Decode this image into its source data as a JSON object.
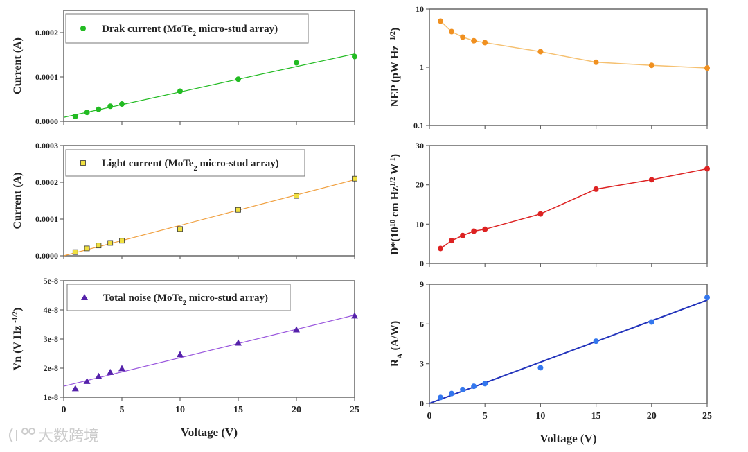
{
  "watermark": "大数跨境",
  "chart_data": [
    {
      "id": "dark",
      "type": "scatter",
      "fit": "linear",
      "x": [
        1,
        2,
        3,
        4,
        5,
        10,
        15,
        20,
        25
      ],
      "y": [
        1.1e-05,
        2e-05,
        2.7e-05,
        3.4e-05,
        3.9e-05,
        6.8e-05,
        9.5e-05,
        0.000132,
        0.000146
      ],
      "fit_line": [
        [
          0,
          9e-06
        ],
        [
          25,
          0.000152
        ]
      ],
      "ylim": [
        0,
        0.00025
      ],
      "yticks": [
        0,
        0.0001,
        0.0002
      ],
      "ytick_labels": [
        "0.0000",
        "0.0001",
        "0.0002"
      ],
      "xlim": [
        0,
        25
      ],
      "xticks": [
        0,
        5,
        10,
        15,
        20,
        25
      ],
      "xtick_labels": [],
      "ylabel": [
        {
          "t": "Current (A)"
        }
      ],
      "legend": [
        {
          "t": "Drak current (MoTe"
        },
        {
          "t": "2",
          "sub": true
        },
        {
          "t": " micro-stud array)"
        }
      ],
      "marker": "circle",
      "color": "#22bb22"
    },
    {
      "id": "light",
      "type": "scatter",
      "fit": "linear",
      "x": [
        1,
        2,
        3,
        4,
        5,
        10,
        15,
        20,
        25
      ],
      "y": [
        1e-05,
        2e-05,
        2.8e-05,
        3.5e-05,
        4.1e-05,
        7.3e-05,
        0.000125,
        0.000163,
        0.00021
      ],
      "fit_line": [
        [
          0,
          0.0
        ],
        [
          25,
          0.000207
        ]
      ],
      "ylim": [
        0,
        0.0003
      ],
      "yticks": [
        0,
        0.0001,
        0.0002,
        0.0003
      ],
      "ytick_labels": [
        "0.0000",
        "0.0001",
        "0.0002",
        "0.0003"
      ],
      "xlim": [
        0,
        25
      ],
      "xticks": [
        0,
        5,
        10,
        15,
        20,
        25
      ],
      "xtick_labels": [],
      "ylabel": [
        {
          "t": "Current (A)"
        }
      ],
      "legend": [
        {
          "t": "Light current (MoTe"
        },
        {
          "t": "2",
          "sub": true
        },
        {
          "t": " micro-stud array)"
        }
      ],
      "marker": "square",
      "color": "#f0e040",
      "line_color": "#f0a040"
    },
    {
      "id": "noise",
      "type": "scatter",
      "fit": "linear",
      "x": [
        1,
        2,
        3,
        4,
        5,
        10,
        15,
        20,
        25
      ],
      "y": [
        1.3e-08,
        1.55e-08,
        1.72e-08,
        1.86e-08,
        1.99e-08,
        2.47e-08,
        2.87e-08,
        3.32e-08,
        3.8e-08
      ],
      "fit_line": [
        [
          0,
          1.38e-08
        ],
        [
          25,
          3.82e-08
        ]
      ],
      "ylim": [
        1e-08,
        5e-08
      ],
      "yticks": [
        1e-08,
        2e-08,
        3e-08,
        4e-08,
        5e-08
      ],
      "ytick_labels": [
        "1e-8",
        "2e-8",
        "3e-8",
        "4e-8",
        "5e-8"
      ],
      "xlim": [
        0,
        25
      ],
      "xticks": [
        0,
        5,
        10,
        15,
        20,
        25
      ],
      "xtick_labels": [
        "0",
        "5",
        "10",
        "15",
        "20",
        "25"
      ],
      "xlabel": "Voltage (V)",
      "ylabel": [
        {
          "t": "Vn (V Hz "
        },
        {
          "t": "-1/2",
          "sup": true
        },
        {
          "t": ")"
        }
      ],
      "legend": [
        {
          "t": "Total noise (MoTe"
        },
        {
          "t": "2",
          "sub": true
        },
        {
          "t": " micro-stud array)"
        }
      ],
      "marker": "triangle",
      "color": "#5522aa",
      "line_color": "#9955dd"
    },
    {
      "id": "nep",
      "type": "line",
      "yscale": "log",
      "x": [
        1,
        2,
        3,
        4,
        5,
        10,
        15,
        20,
        25
      ],
      "y": [
        6.2,
        4.1,
        3.3,
        2.85,
        2.65,
        1.85,
        1.22,
        1.08,
        0.97
      ],
      "ylim": [
        0.1,
        10
      ],
      "yticks": [
        0.1,
        1,
        10
      ],
      "ytick_labels": [
        "0.1",
        "1",
        "10"
      ],
      "xlim": [
        0,
        25
      ],
      "xticks": [
        0,
        5,
        10,
        15,
        20,
        25
      ],
      "xtick_labels": [],
      "ylabel": [
        {
          "t": "NEP (pW Hz "
        },
        {
          "t": "-1/2",
          "sup": true
        },
        {
          "t": ")"
        }
      ],
      "marker": "circle",
      "color": "#f09020",
      "line_color": "#f5c070"
    },
    {
      "id": "dstar",
      "type": "line",
      "x": [
        1,
        2,
        3,
        4,
        5,
        10,
        15,
        20,
        25
      ],
      "y": [
        3.8,
        5.8,
        7.1,
        8.2,
        8.7,
        12.6,
        18.9,
        21.3,
        24.1
      ],
      "ylim": [
        0,
        30
      ],
      "yticks": [
        0,
        10,
        20,
        30
      ],
      "ytick_labels": [
        "0",
        "10",
        "20",
        "30"
      ],
      "xlim": [
        0,
        25
      ],
      "xticks": [
        0,
        5,
        10,
        15,
        20,
        25
      ],
      "xtick_labels": [],
      "ylabel": [
        {
          "t": "D*(10"
        },
        {
          "t": "10",
          "sup": true
        },
        {
          "t": " cm Hz"
        },
        {
          "t": "1/2",
          "sup": true
        },
        {
          "t": " W"
        },
        {
          "t": "-1",
          "sup": true
        },
        {
          "t": ")"
        }
      ],
      "marker": "circle",
      "color": "#dd2222"
    },
    {
      "id": "ra",
      "type": "scatter",
      "fit": "linear",
      "x": [
        1,
        2,
        3,
        4,
        5,
        10,
        15,
        20,
        25
      ],
      "y": [
        0.45,
        0.75,
        1.05,
        1.3,
        1.5,
        2.7,
        4.7,
        6.15,
        8.0
      ],
      "fit_line": [
        [
          0,
          0
        ],
        [
          25,
          7.8
        ]
      ],
      "ylim": [
        0,
        9
      ],
      "yticks": [
        0,
        3,
        6,
        9
      ],
      "ytick_labels": [
        "0",
        "3",
        "6",
        "9"
      ],
      "xlim": [
        0,
        25
      ],
      "xticks": [
        0,
        5,
        10,
        15,
        20,
        25
      ],
      "xtick_labels": [
        "0",
        "5",
        "10",
        "15",
        "20",
        "25"
      ],
      "xlabel": "Voltage (V)",
      "ylabel": [
        {
          "t": "R"
        },
        {
          "t": "A",
          "sub": true
        },
        {
          "t": " (A/W)"
        }
      ],
      "marker": "circle",
      "color": "#3377ee",
      "line_color": "#2233bb"
    }
  ]
}
